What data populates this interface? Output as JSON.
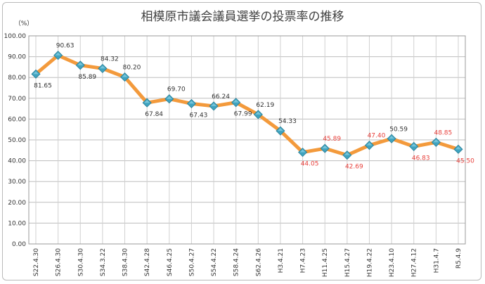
{
  "chart_data": {
    "type": "line",
    "title": "相模原市議会議員選挙の投票率の推移",
    "ylabel": "（%）",
    "xlabel": "",
    "ylim": [
      0,
      100
    ],
    "ytick_step": 10,
    "ytick_labels": [
      "0.00",
      "10.00",
      "20.00",
      "30.00",
      "40.00",
      "50.00",
      "60.00",
      "70.00",
      "80.00",
      "90.00",
      "100.00"
    ],
    "grid": true,
    "categories": [
      "S22.4.30",
      "S26.4.30",
      "S30.4.30",
      "S34.3.22",
      "S38.4.30",
      "S42.4.28",
      "S46.4.25",
      "S50.4.27",
      "S54.4.22",
      "S58.4.24",
      "S62.4.26",
      "H3.4.21",
      "H7.4.23",
      "H11.4.25",
      "H15.4.27",
      "H19.4.22",
      "H23.4.10",
      "H27.4.12",
      "H31.4.7",
      "R5.4.9"
    ],
    "values": [
      81.65,
      90.63,
      85.89,
      84.32,
      80.2,
      67.84,
      69.7,
      67.43,
      66.24,
      67.99,
      62.19,
      54.33,
      44.05,
      45.89,
      42.69,
      47.4,
      50.59,
      46.83,
      48.85,
      45.5
    ],
    "value_labels": [
      "81.65",
      "90.63",
      "85.89",
      "84.32",
      "80.20",
      "67.84",
      "69.70",
      "67.43",
      "66.24",
      "67.99",
      "62.19",
      "54.33",
      "44.05",
      "45.89",
      "42.69",
      "47.40",
      "50.59",
      "46.83",
      "48.85",
      "45.50"
    ],
    "label_positions": [
      "below",
      "above",
      "below",
      "above",
      "above",
      "below",
      "above",
      "below",
      "above",
      "below",
      "above",
      "above",
      "below",
      "above",
      "below",
      "above",
      "above",
      "below",
      "above",
      "below"
    ],
    "label_colors": [
      "#333333",
      "#333333",
      "#333333",
      "#333333",
      "#333333",
      "#333333",
      "#333333",
      "#333333",
      "#333333",
      "#333333",
      "#333333",
      "#333333",
      "#e8413c",
      "#e8413c",
      "#e8413c",
      "#e8413c",
      "#333333",
      "#e8413c",
      "#e8413c",
      "#e8413c"
    ],
    "line_color": "#f39a3c",
    "marker_color": "#3fa3bf"
  }
}
